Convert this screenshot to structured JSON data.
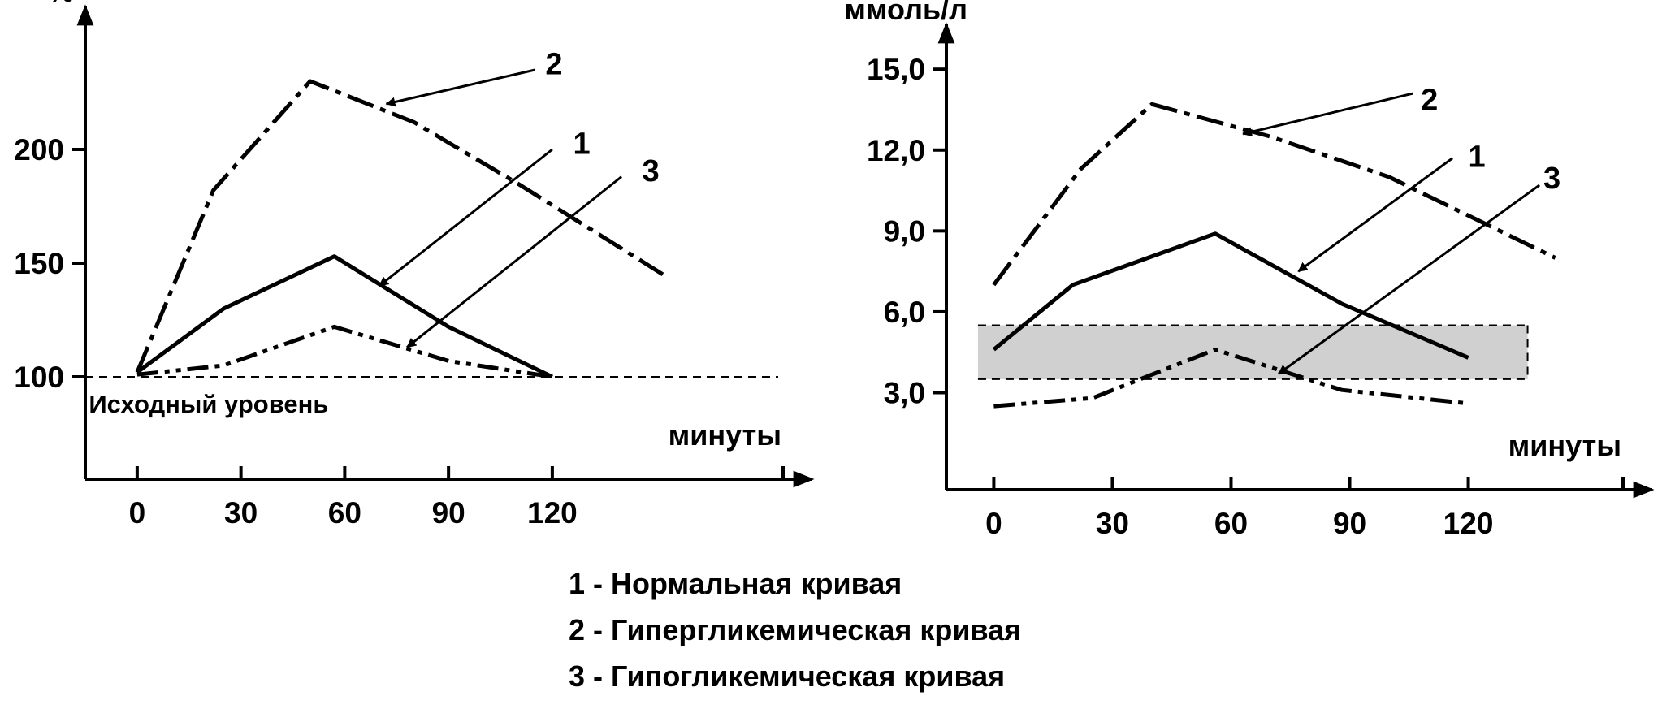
{
  "chart_data": [
    {
      "type": "line",
      "ylabel": "%",
      "xlabel": "минуты",
      "x_ticks": [
        0,
        30,
        60,
        90,
        120
      ],
      "y_ticks": [
        100,
        150,
        200
      ],
      "xlim": [
        -15,
        190
      ],
      "ylim": [
        55,
        255
      ],
      "baseline": {
        "y": 100,
        "label": "Исходный уровень"
      },
      "series": [
        {
          "name": "1",
          "style": "solid",
          "points": [
            [
              0,
              102
            ],
            [
              25,
              130
            ],
            [
              57,
              153
            ],
            [
              90,
              122
            ],
            [
              120,
              100
            ]
          ]
        },
        {
          "name": "2",
          "style": "dash-dot",
          "points": [
            [
              0,
              102
            ],
            [
              22,
              182
            ],
            [
              50,
              230
            ],
            [
              80,
              212
            ],
            [
              110,
              185
            ],
            [
              152,
              145
            ]
          ]
        },
        {
          "name": "3",
          "style": "dash-dot-dot",
          "points": [
            [
              0,
              101
            ],
            [
              25,
              105
            ],
            [
              57,
              122
            ],
            [
              90,
              107
            ],
            [
              120,
              100
            ]
          ]
        }
      ],
      "annotations": [
        {
          "label": "2",
          "text_at": [
            118,
            238
          ],
          "arrow_from": [
            115,
            235
          ],
          "arrow_to": [
            72,
            220
          ]
        },
        {
          "label": "1",
          "text_at": [
            126,
            203
          ],
          "arrow_from": [
            120,
            200
          ],
          "arrow_to": [
            70,
            140
          ]
        },
        {
          "label": "3",
          "text_at": [
            146,
            191
          ],
          "arrow_from": [
            140,
            188
          ],
          "arrow_to": [
            78,
            113
          ]
        }
      ]
    },
    {
      "type": "line",
      "ylabel": "ммоль/л",
      "xlabel": "минуты",
      "x_ticks": [
        0,
        30,
        60,
        90,
        120
      ],
      "y_ticks": [
        3.0,
        6.0,
        9.0,
        12.0,
        15.0
      ],
      "y_tick_labels": [
        "3,0",
        "6,0",
        "9,0",
        "12,0",
        "15,0"
      ],
      "xlim": [
        -12,
        162
      ],
      "ylim": [
        -0.6,
        16.0
      ],
      "normal_range": [
        3.5,
        5.5
      ],
      "series": [
        {
          "name": "1",
          "style": "solid",
          "points": [
            [
              0,
              4.6
            ],
            [
              20,
              7.0
            ],
            [
              56,
              8.9
            ],
            [
              88,
              6.3
            ],
            [
              120,
              4.3
            ]
          ]
        },
        {
          "name": "2",
          "style": "dash-dot",
          "points": [
            [
              0,
              7.0
            ],
            [
              22,
              11.3
            ],
            [
              40,
              13.7
            ],
            [
              70,
              12.5
            ],
            [
              100,
              11.0
            ],
            [
              142,
              8.0
            ]
          ]
        },
        {
          "name": "3",
          "style": "dash-dot-dot",
          "points": [
            [
              0,
              2.5
            ],
            [
              25,
              2.8
            ],
            [
              56,
              4.6
            ],
            [
              88,
              3.1
            ],
            [
              120,
              2.6
            ]
          ]
        }
      ],
      "annotations": [
        {
          "label": "2",
          "text_at": [
            108,
            13.9
          ],
          "arrow_from": [
            106,
            14.1
          ],
          "arrow_to": [
            63,
            12.6
          ]
        },
        {
          "label": "1",
          "text_at": [
            120,
            11.8
          ],
          "arrow_from": [
            116,
            11.7
          ],
          "arrow_to": [
            77,
            7.5
          ]
        },
        {
          "label": "3",
          "text_at": [
            139,
            11.0
          ],
          "arrow_from": [
            138,
            10.7
          ],
          "arrow_to": [
            72,
            3.7
          ]
        }
      ]
    }
  ],
  "legend": [
    {
      "text": "1 - Нормальная кривая"
    },
    {
      "text": "2 - Гипергликемическая кривая"
    },
    {
      "text": "3 - Гипогликемическая кривая"
    }
  ]
}
